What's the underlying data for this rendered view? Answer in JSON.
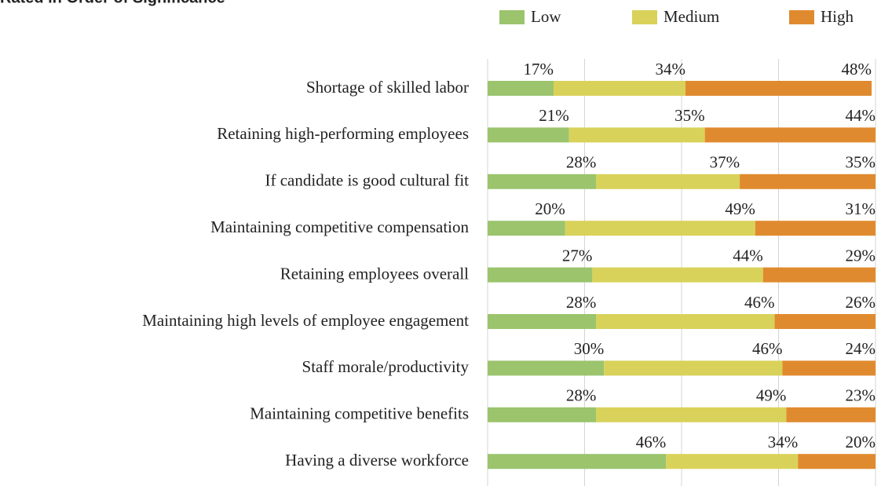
{
  "chart_data": {
    "type": "stacked-barh",
    "title": "Rated in Order of Significance",
    "categories": [
      "Shortage of skilled labor",
      "Retaining high-performing employees",
      "If candidate is good cultural fit",
      "Maintaining competitive compensation",
      "Retaining employees overall",
      "Maintaining high levels of employee engagement",
      "Staff morale/productivity",
      "Maintaining competitive benefits",
      "Having a diverse workforce"
    ],
    "series": [
      {
        "name": "Low",
        "color": "#9bc46d",
        "values": [
          17,
          21,
          28,
          20,
          27,
          28,
          30,
          28,
          46
        ],
        "value_labels": [
          "17%",
          "21%",
          "28%",
          "20%",
          "27%",
          "28%",
          "30%",
          "28%",
          "46%"
        ]
      },
      {
        "name": "Medium",
        "color": "#d9d25a",
        "values": [
          34,
          35,
          37,
          49,
          44,
          46,
          46,
          49,
          34
        ],
        "value_labels": [
          "34%",
          "35%",
          "37%",
          "49%",
          "44%",
          "46%",
          "46%",
          "49%",
          "34%"
        ]
      },
      {
        "name": "High",
        "color": "#e08a2f",
        "values": [
          48,
          44,
          35,
          31,
          29,
          26,
          24,
          23,
          20
        ],
        "value_labels": [
          "48%",
          "44%",
          "35%",
          "31%",
          "29%",
          "26%",
          "24%",
          "23%",
          "20%"
        ]
      }
    ],
    "xlim": [
      0,
      100
    ],
    "xticks": [
      0,
      25,
      50,
      75,
      100
    ],
    "grid": true,
    "legend": "top-right"
  }
}
